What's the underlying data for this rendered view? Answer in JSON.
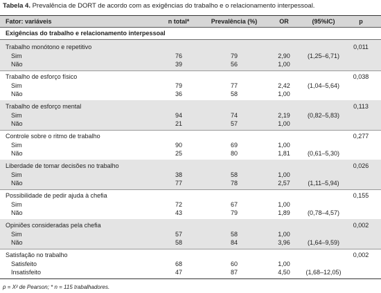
{
  "title": {
    "label": "Tabela 4.",
    "text": "Prevalência de DORT de acordo com as exigências do trabalho e o relacionamento interpessoal."
  },
  "table": {
    "header": [
      "Fator: variáveis",
      "n total*",
      "Prevalência (%)",
      "OR",
      "(95%IC)",
      "p"
    ],
    "section": "Exigências do trabalho e relacionamento interpessoal",
    "groups": [
      {
        "name": "Trabalho monótono e repetitivo",
        "p": "0,011",
        "rows": [
          {
            "label": "Sim",
            "n": "76",
            "prev": "79",
            "or": "2,90",
            "ci": "(1,25–6,71)"
          },
          {
            "label": "Não",
            "n": "39",
            "prev": "56",
            "or": "1,00"
          }
        ]
      },
      {
        "name": "Trabalho de esforço físico",
        "p": "0,038",
        "rows": [
          {
            "label": "Sim",
            "n": "79",
            "prev": "77",
            "or": "2,42",
            "ci": "(1,04–5,64)"
          },
          {
            "label": "Não",
            "n": "36",
            "prev": "58",
            "or": "1,00"
          }
        ]
      },
      {
        "name": "Trabalho de esforço mental",
        "p": "0,113",
        "rows": [
          {
            "label": "Sim",
            "n": "94",
            "prev": "74",
            "or": "2,19",
            "ci": "(0,82–5,83)"
          },
          {
            "label": "Não",
            "n": "21",
            "prev": "57",
            "or": "1,00"
          }
        ]
      },
      {
        "name": "Controle sobre o ritmo de trabalho",
        "p": "0,277",
        "rows": [
          {
            "label": "Sim",
            "n": "90",
            "prev": "69",
            "or": "1,00"
          },
          {
            "label": "Não",
            "n": "25",
            "prev": "80",
            "or": "1,81",
            "ci": "(0,61–5,30)"
          }
        ]
      },
      {
        "name": "Liberdade de tomar decisões no trabalho",
        "p": "0,026",
        "rows": [
          {
            "label": "Sim",
            "n": "38",
            "prev": "58",
            "or": "1,00"
          },
          {
            "label": "Não",
            "n": "77",
            "prev": "78",
            "or": "2,57",
            "ci": "(1,11–5,94)"
          }
        ]
      },
      {
        "name": "Possibilidade de pedir ajuda à chefia",
        "p": "0,155",
        "rows": [
          {
            "label": "Sim",
            "n": "72",
            "prev": "67",
            "or": "1,00"
          },
          {
            "label": "Não",
            "n": "43",
            "prev": "79",
            "or": "1,89",
            "ci": "(0,78–4,57)"
          }
        ]
      },
      {
        "name": "Opiniões consideradas pela chefia",
        "p": "0,002",
        "rows": [
          {
            "label": "Sim",
            "n": "57",
            "prev": "58",
            "or": "1,00"
          },
          {
            "label": "Não",
            "n": "58",
            "prev": "84",
            "or": "3,96",
            "ci": "(1,64–9,59)"
          }
        ]
      },
      {
        "name": "Satisfação no trabalho",
        "p": "0,002",
        "rows": [
          {
            "label": "Satisfeito",
            "n": "68",
            "prev": "60",
            "or": "1,00"
          },
          {
            "label": "Insatisfeito",
            "n": "47",
            "prev": "87",
            "or": "4,50",
            "ci": "(1,68–12,05)"
          }
        ]
      }
    ]
  },
  "footnote": "p = X² de Pearson; * n = 115 trabalhadores."
}
